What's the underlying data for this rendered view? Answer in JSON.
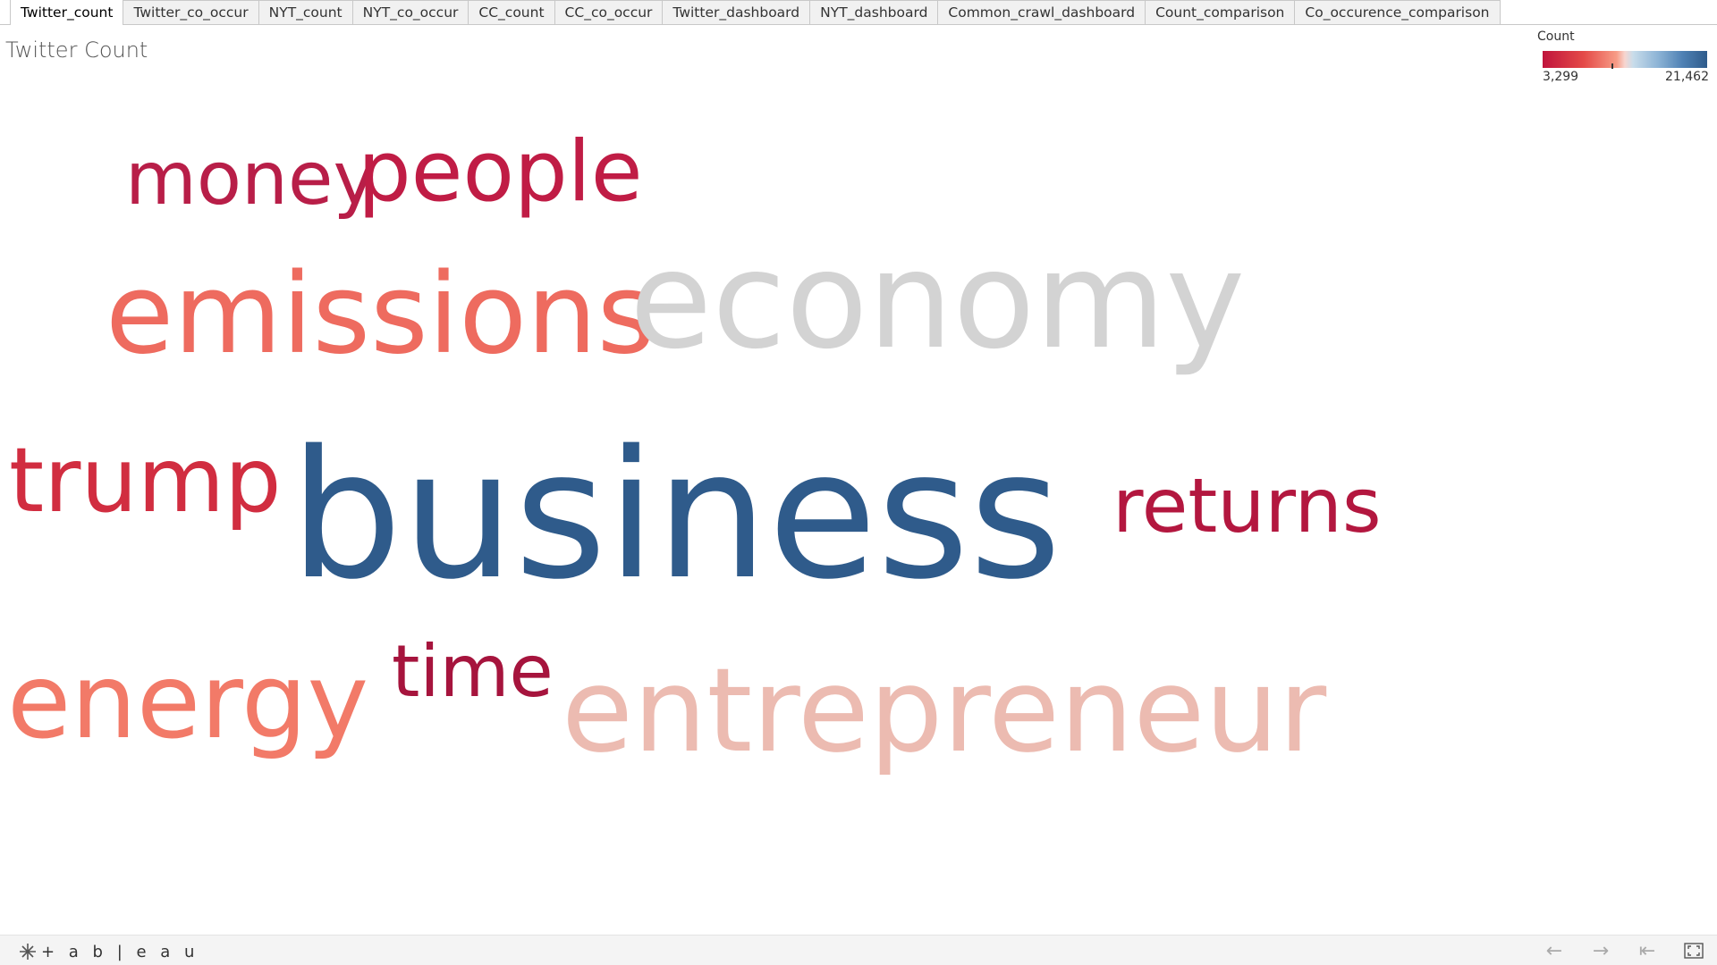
{
  "tabs": [
    {
      "label": "Twitter_count",
      "active": true
    },
    {
      "label": "Twitter_co_occur",
      "active": false
    },
    {
      "label": "NYT_count",
      "active": false
    },
    {
      "label": "NYT_co_occur",
      "active": false
    },
    {
      "label": "CC_count",
      "active": false
    },
    {
      "label": "CC_co_occur",
      "active": false
    },
    {
      "label": "Twitter_dashboard",
      "active": false
    },
    {
      "label": "NYT_dashboard",
      "active": false
    },
    {
      "label": "Common_crawl_dashboard",
      "active": false
    },
    {
      "label": "Count_comparison",
      "active": false
    },
    {
      "label": "Co_occurence_comparison",
      "active": false
    }
  ],
  "sheet": {
    "title": "Twitter Count"
  },
  "legend": {
    "title": "Count",
    "min_label": "3,299",
    "max_label": "21,462",
    "marker_fraction": 0.42,
    "gradient_colors": [
      "#c0143c",
      "#f79c86",
      "#d9d9d9",
      "#8db4d6",
      "#2f5b8b"
    ]
  },
  "word_cloud": {
    "words": [
      {
        "text": "money",
        "color": "#b81e48"
      },
      {
        "text": "people",
        "color": "#c01c45"
      },
      {
        "text": "emissions",
        "color": "#ee6b5f"
      },
      {
        "text": "economy",
        "color": "#d3d3d3"
      },
      {
        "text": "trump",
        "color": "#d12d40"
      },
      {
        "text": "business",
        "color": "#2f5b8b"
      },
      {
        "text": "returns",
        "color": "#b3173f"
      },
      {
        "text": "energy",
        "color": "#f27a68"
      },
      {
        "text": "time",
        "color": "#a6143d"
      },
      {
        "text": "entrepreneur",
        "color": "#ecbbb1"
      }
    ]
  },
  "footer": {
    "logo_text": "+ a b | e a u",
    "icons": [
      "tableau-logo-icon",
      "undo-arrow-icon",
      "redo-arrow-icon",
      "revert-icon",
      "fullscreen-icon"
    ]
  }
}
